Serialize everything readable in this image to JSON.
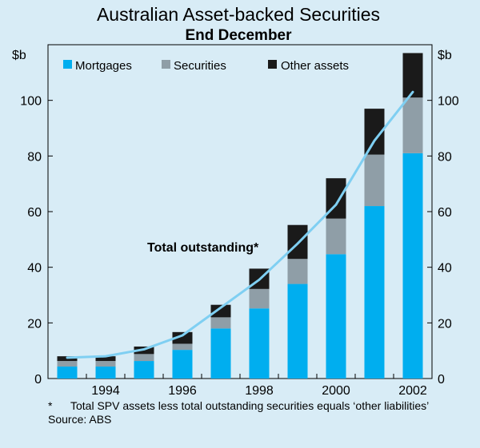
{
  "chart_data": {
    "type": "bar",
    "title": "Australian Asset-backed Securities",
    "subtitle": "End December",
    "ylabel_left": "$b",
    "ylabel_right": "$b",
    "ylim": [
      0,
      120
    ],
    "yticks": [
      0,
      20,
      40,
      60,
      80,
      100
    ],
    "x": [
      1993,
      1994,
      1995,
      1996,
      1997,
      1998,
      1999,
      2000,
      2001,
      2002
    ],
    "xtick_labels": [
      "1994",
      "1996",
      "1998",
      "2000",
      "2002"
    ],
    "stacked": true,
    "grid": false,
    "legend_position": "top",
    "series": [
      {
        "name": "Mortgages",
        "color": "#00aeef",
        "values": [
          4.3,
          4.3,
          6.3,
          10.3,
          18.0,
          25.2,
          34.0,
          44.7,
          62.0,
          81.0
        ]
      },
      {
        "name": "Securities",
        "color": "#8f9ea7",
        "values": [
          2.0,
          2.0,
          2.5,
          2.2,
          4.0,
          7.0,
          9.0,
          12.8,
          18.5,
          20.0
        ]
      },
      {
        "name": "Other assets",
        "color": "#1a1a1a",
        "values": [
          1.7,
          1.7,
          2.7,
          4.2,
          4.5,
          7.3,
          12.2,
          14.5,
          16.5,
          16.0
        ]
      }
    ],
    "line": {
      "name": "Total outstanding*",
      "color": "#7fcff2",
      "values": [
        7.5,
        8.0,
        10.5,
        15.5,
        25.5,
        35.5,
        48.5,
        62.5,
        85.5,
        103.0
      ]
    },
    "annotation": "Total outstanding*",
    "footnote_mark": "*",
    "footnote": "Total SPV assets less total outstanding securities equals ‘other liabilities’",
    "source": "Source: ABS"
  }
}
